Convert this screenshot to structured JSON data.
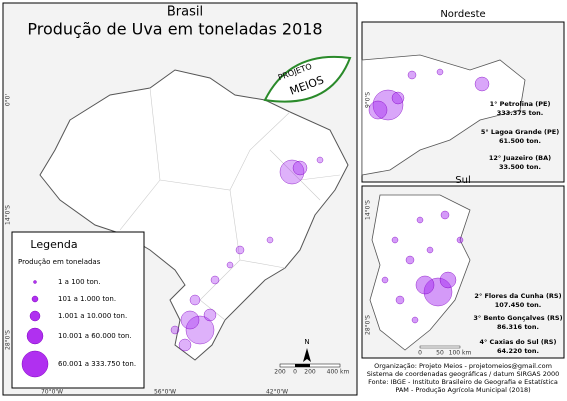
{
  "header": {
    "title": "Brasil",
    "subtitle": "Produção de Uva em toneladas 2018"
  },
  "logo": {
    "line1": "PROJETO",
    "line2": "MEIOS"
  },
  "main_map": {
    "lat_labels": [
      "0°0'",
      "14°0'S",
      "28°0'S"
    ],
    "lon_labels": [
      "70°0'W",
      "56°0'W",
      "42°0'W"
    ],
    "scale": [
      "200",
      "0",
      "200",
      "400 km"
    ],
    "north": "N"
  },
  "legend": {
    "title": "Legenda",
    "subtitle": "Produção em toneladas",
    "items": [
      "1 a 100 ton.",
      "101 a 1.000 ton.",
      "1.001 a 10.000 ton.",
      "10.001 a 60.000 ton.",
      "60.001 a 333.750 ton."
    ]
  },
  "nordeste": {
    "title": "Nordeste",
    "lat_label": "9°0'S",
    "labels": [
      {
        "name": "1° Petrolina (PE)",
        "value": "333.375 ton."
      },
      {
        "name": "5° Lagoa Grande (PE)",
        "value": "61.500 ton."
      },
      {
        "name": "12° Juazeiro (BA)",
        "value": "33.500 ton."
      }
    ]
  },
  "sul": {
    "title": "Sul",
    "lat_labels": [
      "14°0'S",
      "28°0'S"
    ],
    "scale": [
      "0",
      "50",
      "100 km"
    ],
    "labels": [
      {
        "name": "2° Flores da Cunha (RS)",
        "value": "107.450 ton."
      },
      {
        "name": "3° Bento Gonçalves (RS)",
        "value": "86.316 ton."
      },
      {
        "name": "4° Caxias do Sul (RS)",
        "value": "64.220 ton."
      }
    ]
  },
  "credits": [
    "Organização: Projeto Meios - projetomeios@gmail.com",
    "Sistema de coordenadas geográficas / datum SIRGAS 2000",
    "Fonte: IBGE - Instituto Brasileiro de Geografia e Estatística",
    "PAM - Produção Agrícola Municipal (2018)"
  ]
}
